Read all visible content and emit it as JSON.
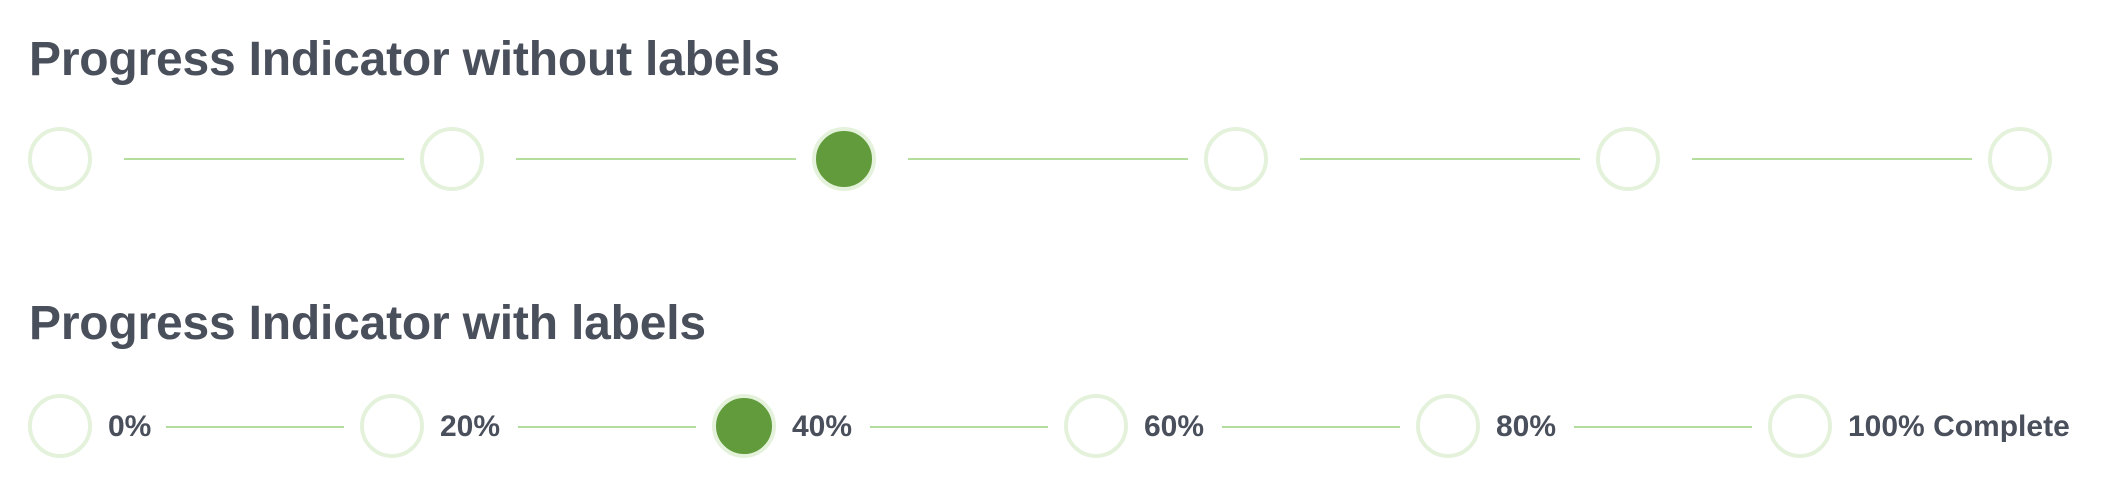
{
  "sections": [
    {
      "title": "Progress Indicator without labels",
      "active_index": 2,
      "step_count": 6
    },
    {
      "title": "Progress Indicator with labels",
      "active_index": 2,
      "steps": [
        {
          "label": "0%"
        },
        {
          "label": "20%"
        },
        {
          "label": "40%"
        },
        {
          "label": "60%"
        },
        {
          "label": "80%"
        },
        {
          "label": "100% Complete"
        }
      ]
    }
  ],
  "colors": {
    "active_fill": "#629b3b",
    "ring": "#e4f2dc",
    "connector": "#b4dc9c",
    "text": "#4a4f5c"
  }
}
